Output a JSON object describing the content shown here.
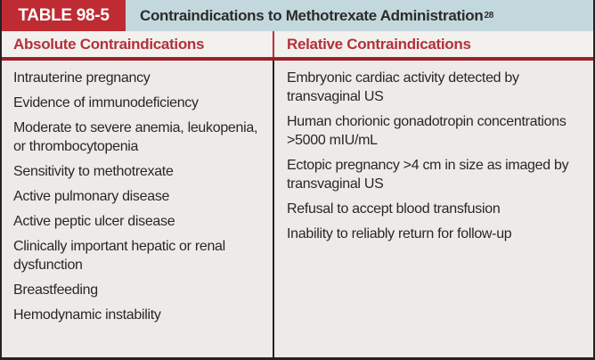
{
  "header": {
    "table_label": "TABLE 98-5",
    "title": "Contraindications to Methotrexate Administration",
    "reference_superscript": "28"
  },
  "columns": [
    {
      "header": "Absolute Contraindications",
      "items": [
        "Intrauterine pregnancy",
        "Evidence of immunodeficiency",
        "Moderate to severe anemia, leukopenia, or thrombocytopenia",
        "Sensitivity to methotrexate",
        "Active pulmonary disease",
        "Active peptic ulcer disease",
        "Clinically important hepatic or renal dysfunction",
        "Breastfeeding",
        "Hemodynamic instability"
      ]
    },
    {
      "header": "Relative Contraindications",
      "items": [
        "Embryonic cardiac activity detected by transvaginal US",
        "Human chorionic gonadotropin concentrations >5000 mIU/mL",
        "Ectopic pregnancy >4 cm in size as imaged by transvaginal US",
        "Refusal to accept blood transfusion",
        "Inability to reliably return for follow-up"
      ]
    }
  ],
  "colors": {
    "tab_red": "#bf2b33",
    "header_band_blue": "#c3d8dd",
    "column_header_red": "#b4303a",
    "rule_dark_red": "#9e1e2c",
    "body_background": "#edebe8",
    "body_text": "#2a2627",
    "border_dark": "#262223"
  }
}
